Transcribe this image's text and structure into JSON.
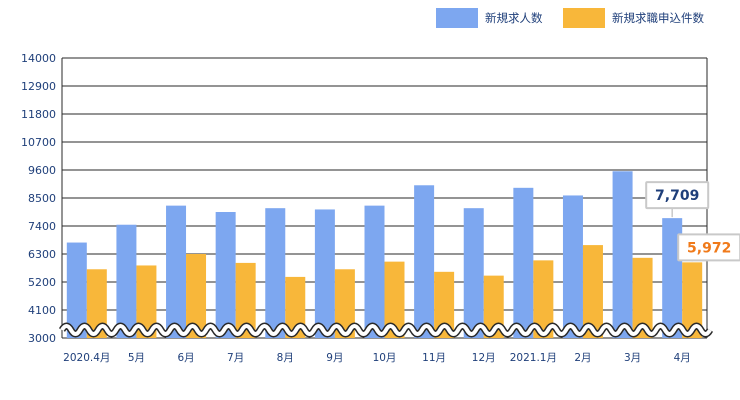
{
  "chart_data": {
    "type": "bar",
    "categories": [
      "2020.4月",
      "5月",
      "6月",
      "7月",
      "8月",
      "9月",
      "10月",
      "11月",
      "12月",
      "2021.1月",
      "2月",
      "3月",
      "4月"
    ],
    "series": [
      {
        "name": "新規求人数",
        "color": "#7da7f0",
        "values": [
          6750,
          7450,
          8200,
          7950,
          8100,
          8050,
          8200,
          9000,
          8100,
          8900,
          8600,
          9550,
          7709
        ]
      },
      {
        "name": "新規求職申込件数",
        "color": "#f8b73a",
        "values": [
          5700,
          5850,
          6300,
          5950,
          5400,
          5700,
          6000,
          5600,
          5450,
          6050,
          6650,
          6150,
          5972
        ]
      }
    ],
    "yticks": [
      3000,
      4100,
      5200,
      6300,
      7400,
      8500,
      9600,
      10700,
      11800,
      12900,
      14000
    ],
    "ylim": [
      3000,
      14000
    ],
    "axis_break": true,
    "legend_position": "top-right",
    "callouts": [
      {
        "series": 0,
        "category": "4月",
        "text": "7,709",
        "color": "#1f3f7a"
      },
      {
        "series": 1,
        "category": "4月",
        "text": "5,972",
        "color": "#f07a1a"
      }
    ]
  }
}
